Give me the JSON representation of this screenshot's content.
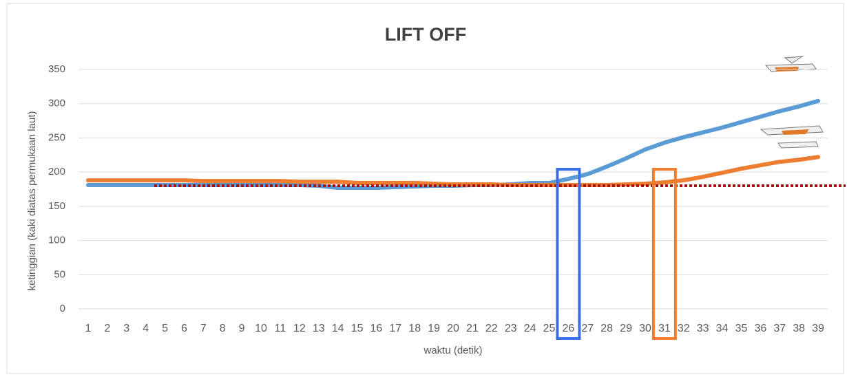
{
  "chart_data": {
    "type": "line",
    "title": "LIFT OFF",
    "x_label": "waktu (detik)",
    "y_label": "ketinggian (kaki diatas permukaan laut)",
    "categories": [
      "1",
      "2",
      "3",
      "4",
      "5",
      "6",
      "7",
      "8",
      "9",
      "10",
      "11",
      "12",
      "13",
      "14",
      "15",
      "16",
      "17",
      "18",
      "19",
      "20",
      "21",
      "22",
      "23",
      "24",
      "25",
      "26",
      "27",
      "28",
      "29",
      "30",
      "31",
      "32",
      "33",
      "34",
      "35",
      "36",
      "37",
      "38",
      "39"
    ],
    "series": [
      {
        "color": "#5b9bd5",
        "values": [
          181,
          181,
          181,
          181,
          181,
          181,
          181,
          181,
          181,
          181,
          181,
          181,
          180,
          177,
          177,
          177,
          178,
          179,
          180,
          180,
          181,
          181,
          182,
          184,
          184,
          190,
          197,
          208,
          220,
          233,
          243,
          251,
          258,
          265,
          273,
          281,
          289,
          296,
          304
        ]
      },
      {
        "color": "#ed7d31",
        "values": [
          188,
          188,
          188,
          188,
          188,
          188,
          187,
          187,
          187,
          187,
          187,
          186,
          186,
          186,
          184,
          184,
          184,
          184,
          183,
          182,
          182,
          182,
          181,
          181,
          181,
          181,
          181,
          181,
          182,
          183,
          185,
          188,
          193,
          199,
          205,
          210,
          215,
          218,
          222
        ]
      }
    ],
    "ylim": [
      0,
      350
    ],
    "yticks": [
      0,
      50,
      100,
      150,
      200,
      250,
      300,
      350
    ],
    "grid": true,
    "reference_line": {
      "value": 180,
      "color": "#a50f0f"
    },
    "highlights": [
      {
        "x": "26",
        "color": "#3c6ee8"
      },
      {
        "x": "31",
        "color": "#ed7d31"
      }
    ]
  }
}
